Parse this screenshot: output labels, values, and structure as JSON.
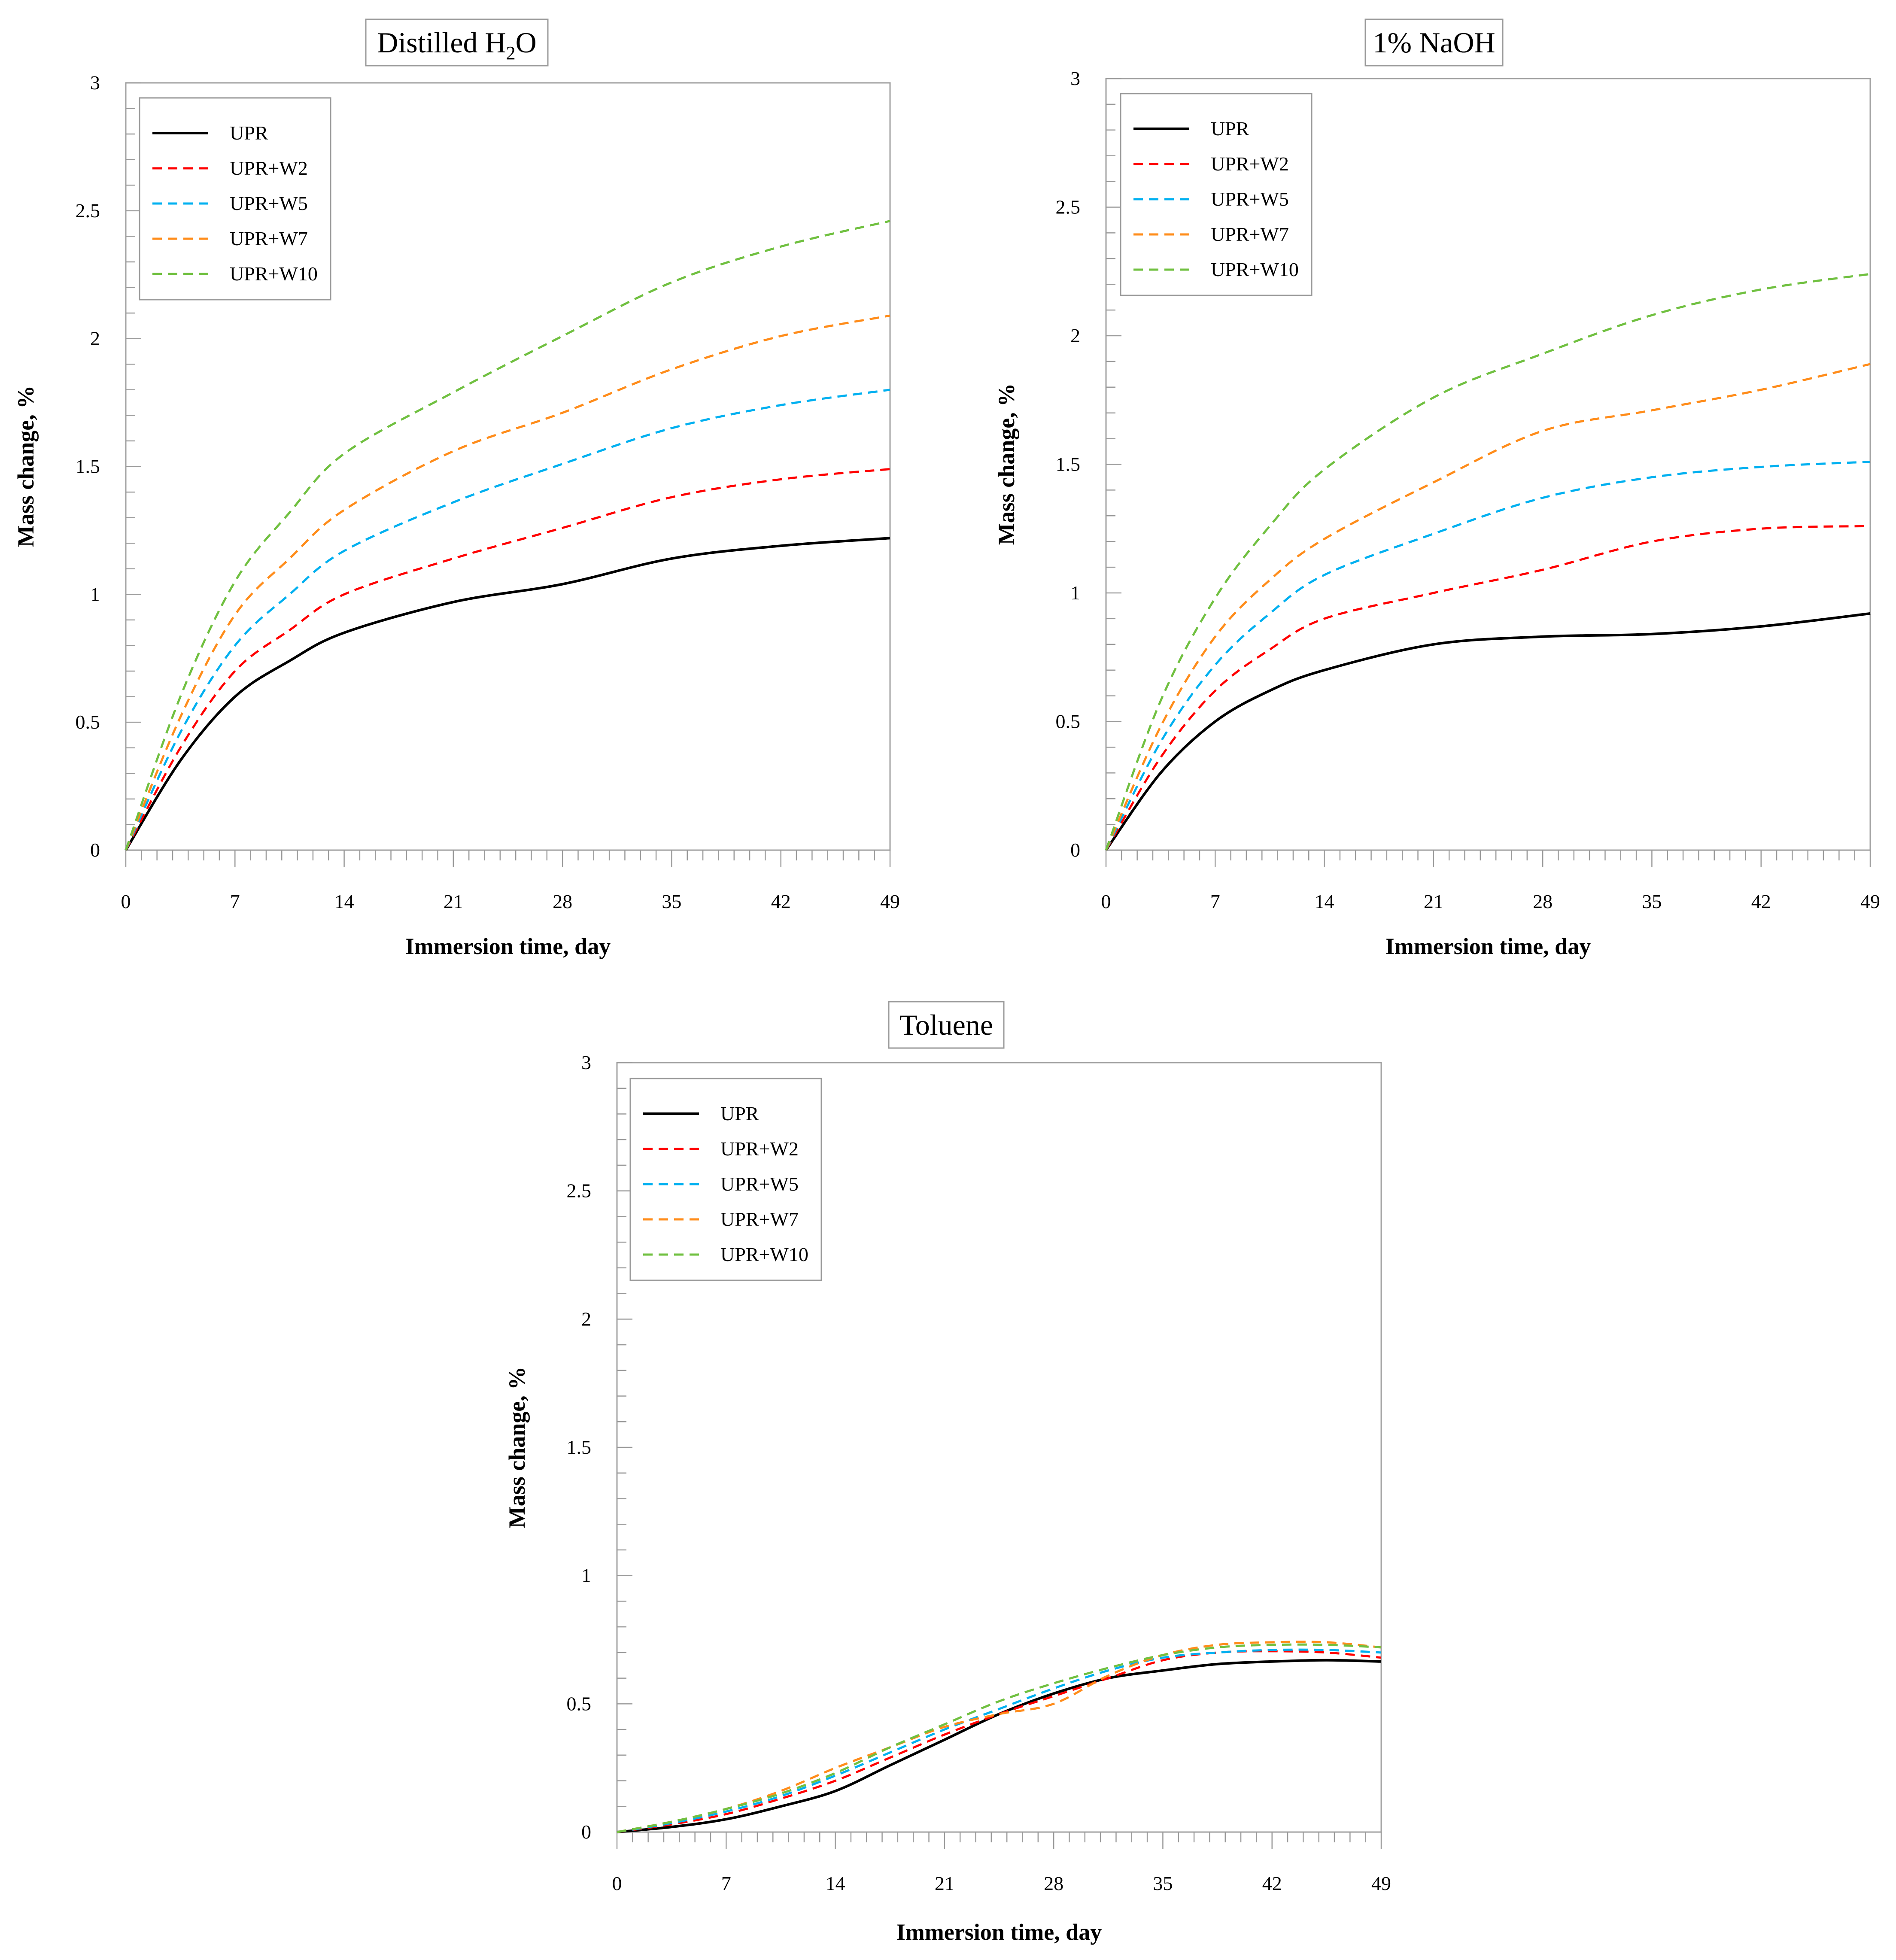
{
  "chart_data": [
    {
      "type": "line",
      "title": "Distilled H2O",
      "title_main": "Distilled H",
      "title_sub": "2",
      "title_end": "O",
      "xlabel": "Immersion time, day",
      "ylabel": "Mass change, %",
      "xlim": [
        0,
        49
      ],
      "ylim": [
        0,
        3
      ],
      "xticks": [
        0,
        7,
        14,
        21,
        28,
        35,
        42,
        49
      ],
      "xtick_labels": [
        "0",
        "7",
        "14",
        "21",
        "28",
        "35",
        "42",
        "49"
      ],
      "yticks": [
        0,
        0.5,
        1,
        1.5,
        2,
        2.5,
        3
      ],
      "ytick_labels": [
        "0",
        "0.5",
        "1",
        "1.5",
        "2",
        "2.5",
        "3"
      ],
      "legend": "top-left",
      "x": [
        0,
        3.5,
        7,
        10.5,
        14,
        21,
        28,
        35,
        42,
        49
      ],
      "series": [
        {
          "name": "UPR",
          "color": "#000000",
          "dash": "solid",
          "values": [
            0,
            0.35,
            0.6,
            0.74,
            0.85,
            0.97,
            1.04,
            1.14,
            1.19,
            1.22
          ]
        },
        {
          "name": "UPR+W2",
          "color": "#ff0000",
          "dash": "dashed",
          "values": [
            0,
            0.4,
            0.7,
            0.86,
            1.0,
            1.14,
            1.26,
            1.38,
            1.45,
            1.49
          ]
        },
        {
          "name": "UPR+W5",
          "color": "#00b0f0",
          "dash": "dashed",
          "values": [
            0,
            0.46,
            0.8,
            1.0,
            1.17,
            1.36,
            1.51,
            1.65,
            1.74,
            1.8
          ]
        },
        {
          "name": "UPR+W7",
          "color": "#ff8c1a",
          "dash": "dashed",
          "values": [
            0,
            0.52,
            0.92,
            1.14,
            1.33,
            1.56,
            1.71,
            1.88,
            2.01,
            2.09
          ]
        },
        {
          "name": "UPR+W10",
          "color": "#70c040",
          "dash": "dashed",
          "values": [
            0,
            0.6,
            1.05,
            1.32,
            1.55,
            1.79,
            2.01,
            2.22,
            2.36,
            2.46
          ]
        }
      ]
    },
    {
      "type": "line",
      "title": "1% NaOH",
      "xlabel": "Immersion time, day",
      "ylabel": "Mass change, %",
      "xlim": [
        0,
        49
      ],
      "ylim": [
        0,
        3
      ],
      "xticks": [
        0,
        7,
        14,
        21,
        28,
        35,
        42,
        49
      ],
      "xtick_labels": [
        "0",
        "7",
        "14",
        "21",
        "28",
        "35",
        "42",
        "49"
      ],
      "yticks": [
        0,
        0.5,
        1,
        1.5,
        2,
        2.5,
        3
      ],
      "ytick_labels": [
        "0",
        "0.5",
        "1",
        "1.5",
        "2",
        "2.5",
        "3"
      ],
      "legend": "top-left",
      "x": [
        0,
        3.5,
        7,
        10.5,
        14,
        21,
        28,
        35,
        42,
        49
      ],
      "series": [
        {
          "name": "UPR",
          "color": "#000000",
          "dash": "solid",
          "values": [
            0,
            0.3,
            0.5,
            0.62,
            0.7,
            0.8,
            0.83,
            0.84,
            0.87,
            0.92
          ]
        },
        {
          "name": "UPR+W2",
          "color": "#ff0000",
          "dash": "dashed",
          "values": [
            0,
            0.36,
            0.62,
            0.78,
            0.9,
            1.0,
            1.09,
            1.2,
            1.25,
            1.26
          ]
        },
        {
          "name": "UPR+W5",
          "color": "#00b0f0",
          "dash": "dashed",
          "values": [
            0,
            0.42,
            0.72,
            0.92,
            1.07,
            1.23,
            1.37,
            1.45,
            1.49,
            1.51
          ]
        },
        {
          "name": "UPR+W7",
          "color": "#ff8c1a",
          "dash": "dashed",
          "values": [
            0,
            0.48,
            0.83,
            1.05,
            1.21,
            1.43,
            1.63,
            1.71,
            1.79,
            1.89
          ]
        },
        {
          "name": "UPR+W10",
          "color": "#70c040",
          "dash": "dashed",
          "values": [
            0,
            0.58,
            0.98,
            1.26,
            1.48,
            1.76,
            1.93,
            2.08,
            2.18,
            2.24
          ]
        }
      ]
    },
    {
      "type": "line",
      "title": "Toluene",
      "xlabel": "Immersion time, day",
      "ylabel": "Mass change, %",
      "xlim": [
        0,
        49
      ],
      "ylim": [
        0,
        3
      ],
      "xticks": [
        0,
        7,
        14,
        21,
        28,
        35,
        42,
        49
      ],
      "xtick_labels": [
        "0",
        "7",
        "14",
        "21",
        "28",
        "35",
        "42",
        "49"
      ],
      "yticks": [
        0,
        0.5,
        1,
        1.5,
        2,
        2.5,
        3
      ],
      "ytick_labels": [
        "0",
        "0.5",
        "1",
        "1.5",
        "2",
        "2.5",
        "3"
      ],
      "legend": "top-left",
      "x": [
        0,
        3.5,
        7,
        10.5,
        14,
        17.5,
        21,
        24.5,
        28,
        31.5,
        35,
        38.5,
        42,
        45.5,
        49
      ],
      "series": [
        {
          "name": "UPR",
          "color": "#000000",
          "dash": "solid",
          "values": [
            0,
            0.02,
            0.05,
            0.1,
            0.16,
            0.26,
            0.36,
            0.46,
            0.54,
            0.6,
            0.63,
            0.655,
            0.665,
            0.67,
            0.665
          ]
        },
        {
          "name": "UPR+W2",
          "color": "#ff0000",
          "dash": "dashed",
          "values": [
            0,
            0.03,
            0.07,
            0.13,
            0.2,
            0.29,
            0.38,
            0.46,
            0.53,
            0.6,
            0.67,
            0.7,
            0.705,
            0.7,
            0.68
          ]
        },
        {
          "name": "UPR+W5",
          "color": "#00b0f0",
          "dash": "dashed",
          "values": [
            0,
            0.035,
            0.08,
            0.14,
            0.22,
            0.31,
            0.4,
            0.48,
            0.56,
            0.63,
            0.68,
            0.7,
            0.71,
            0.71,
            0.7
          ]
        },
        {
          "name": "UPR+W7",
          "color": "#ff8c1a",
          "dash": "dashed",
          "values": [
            0,
            0.04,
            0.09,
            0.16,
            0.25,
            0.33,
            0.41,
            0.46,
            0.5,
            0.61,
            0.69,
            0.73,
            0.74,
            0.74,
            0.72
          ]
        },
        {
          "name": "UPR+W10",
          "color": "#70c040",
          "dash": "dashed",
          "values": [
            0,
            0.04,
            0.09,
            0.15,
            0.23,
            0.33,
            0.42,
            0.51,
            0.58,
            0.64,
            0.69,
            0.72,
            0.73,
            0.73,
            0.72
          ]
        }
      ]
    }
  ]
}
